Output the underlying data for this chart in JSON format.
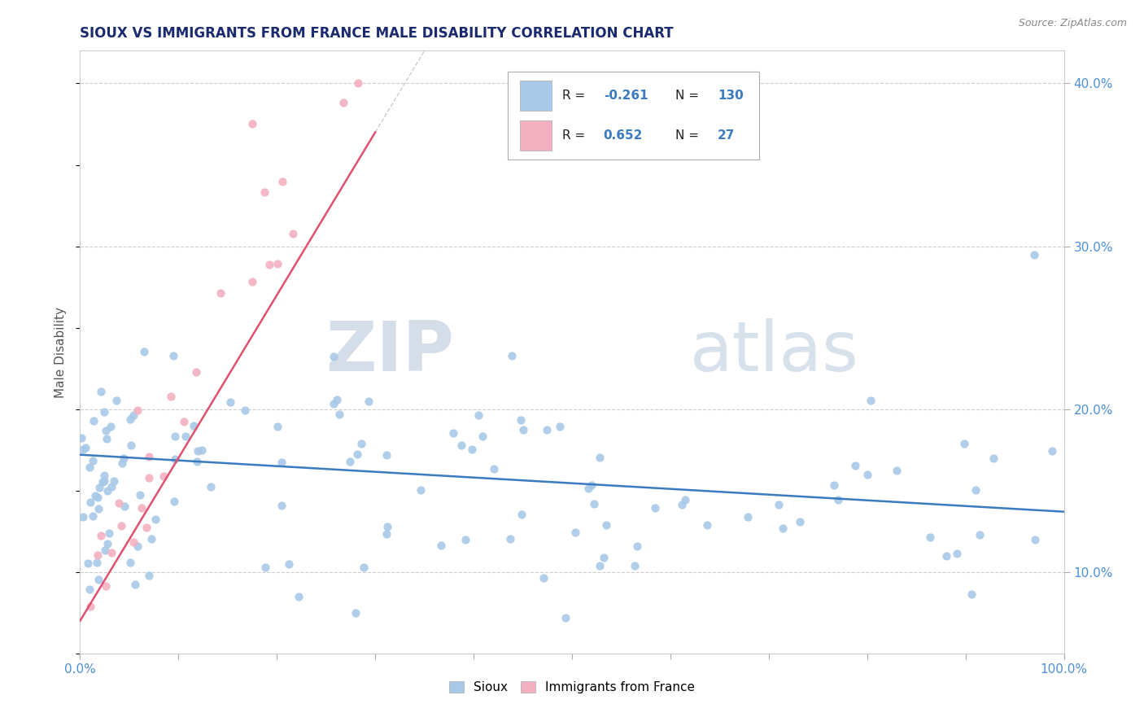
{
  "title": "SIOUX VS IMMIGRANTS FROM FRANCE MALE DISABILITY CORRELATION CHART",
  "source_text": "Source: ZipAtlas.com",
  "ylabel": "Male Disability",
  "x_min": 0.0,
  "x_max": 1.0,
  "y_min": 0.05,
  "y_max": 0.42,
  "x_ticks": [
    0.0,
    0.1,
    0.2,
    0.3,
    0.4,
    0.5,
    0.6,
    0.7,
    0.8,
    0.9,
    1.0
  ],
  "y_ticks": [
    0.1,
    0.2,
    0.3,
    0.4
  ],
  "y_tick_labels": [
    "10.0%",
    "20.0%",
    "30.0%",
    "40.0%"
  ],
  "sioux_color": "#a8c8e8",
  "immigrants_color": "#f2b0c0",
  "sioux_line_color": "#3a7abf",
  "immigrants_line_color": "#e05070",
  "watermark_zip": "ZIP",
  "watermark_atlas": "atlas",
  "legend_label_1": "Sioux",
  "legend_label_2": "Immigrants from France",
  "sioux_R": "-0.261",
  "sioux_N": "130",
  "immigrants_R": "0.652",
  "immigrants_N": "27"
}
